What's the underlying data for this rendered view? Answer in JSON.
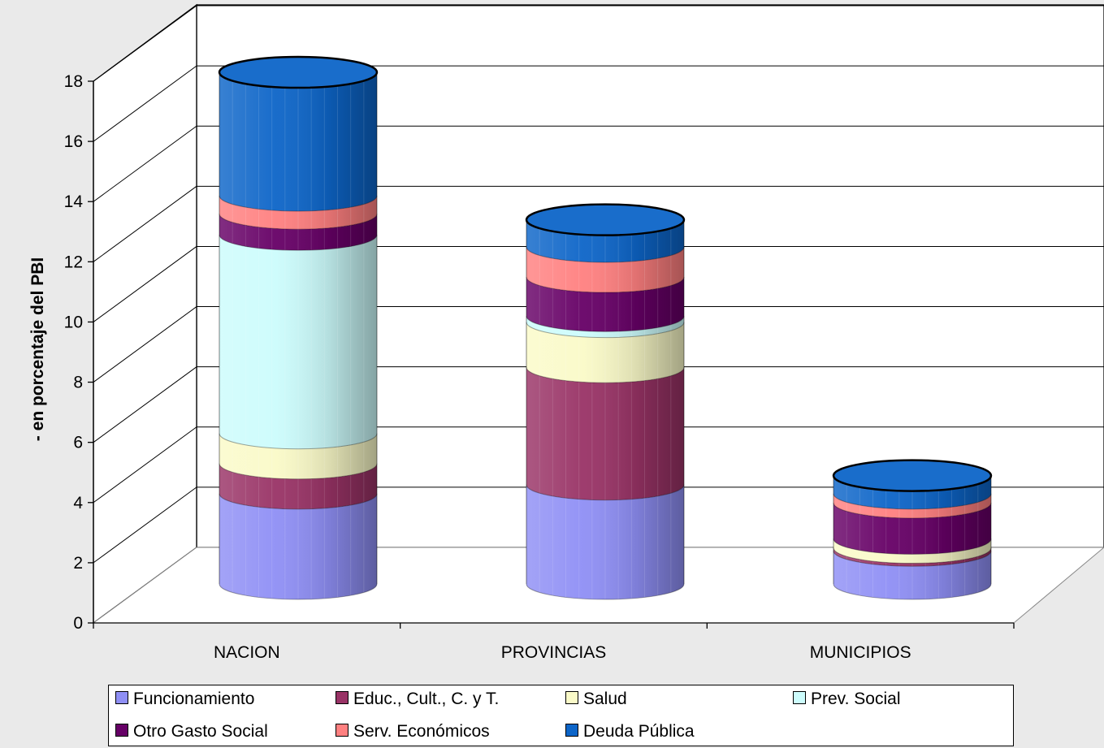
{
  "chart_data": {
    "type": "bar",
    "stacked": true,
    "style": "3d-cylinder",
    "title": "",
    "xlabel": "",
    "ylabel": "- en porcentaje del PBI",
    "ylim": [
      0,
      18
    ],
    "yticks": [
      0,
      2,
      4,
      6,
      8,
      10,
      12,
      14,
      16,
      18
    ],
    "grid": true,
    "legend_position": "bottom",
    "categories": [
      "NACION",
      "PROVINCIAS",
      "MUNICIPIOS"
    ],
    "series": [
      {
        "name": "Funcionamiento",
        "color": "#8f8ff5",
        "values": [
          3.0,
          3.3,
          1.1
        ]
      },
      {
        "name": "Educ., Cult., C. y T.",
        "color": "#993366",
        "values": [
          1.0,
          3.9,
          0.1
        ]
      },
      {
        "name": "Salud",
        "color": "#fafac8",
        "values": [
          1.0,
          1.5,
          0.3
        ]
      },
      {
        "name": "Prev. Social",
        "color": "#ccfcfc",
        "values": [
          6.6,
          0.2,
          0.0
        ]
      },
      {
        "name": "Otro Gasto Social",
        "color": "#660066",
        "values": [
          0.7,
          1.3,
          1.2
        ]
      },
      {
        "name": "Serv. Económicos",
        "color": "#ff8080",
        "values": [
          0.6,
          1.0,
          0.3
        ]
      },
      {
        "name": "Deuda Pública",
        "color": "#0d65c8",
        "values": [
          4.1,
          0.9,
          0.6
        ]
      }
    ]
  }
}
